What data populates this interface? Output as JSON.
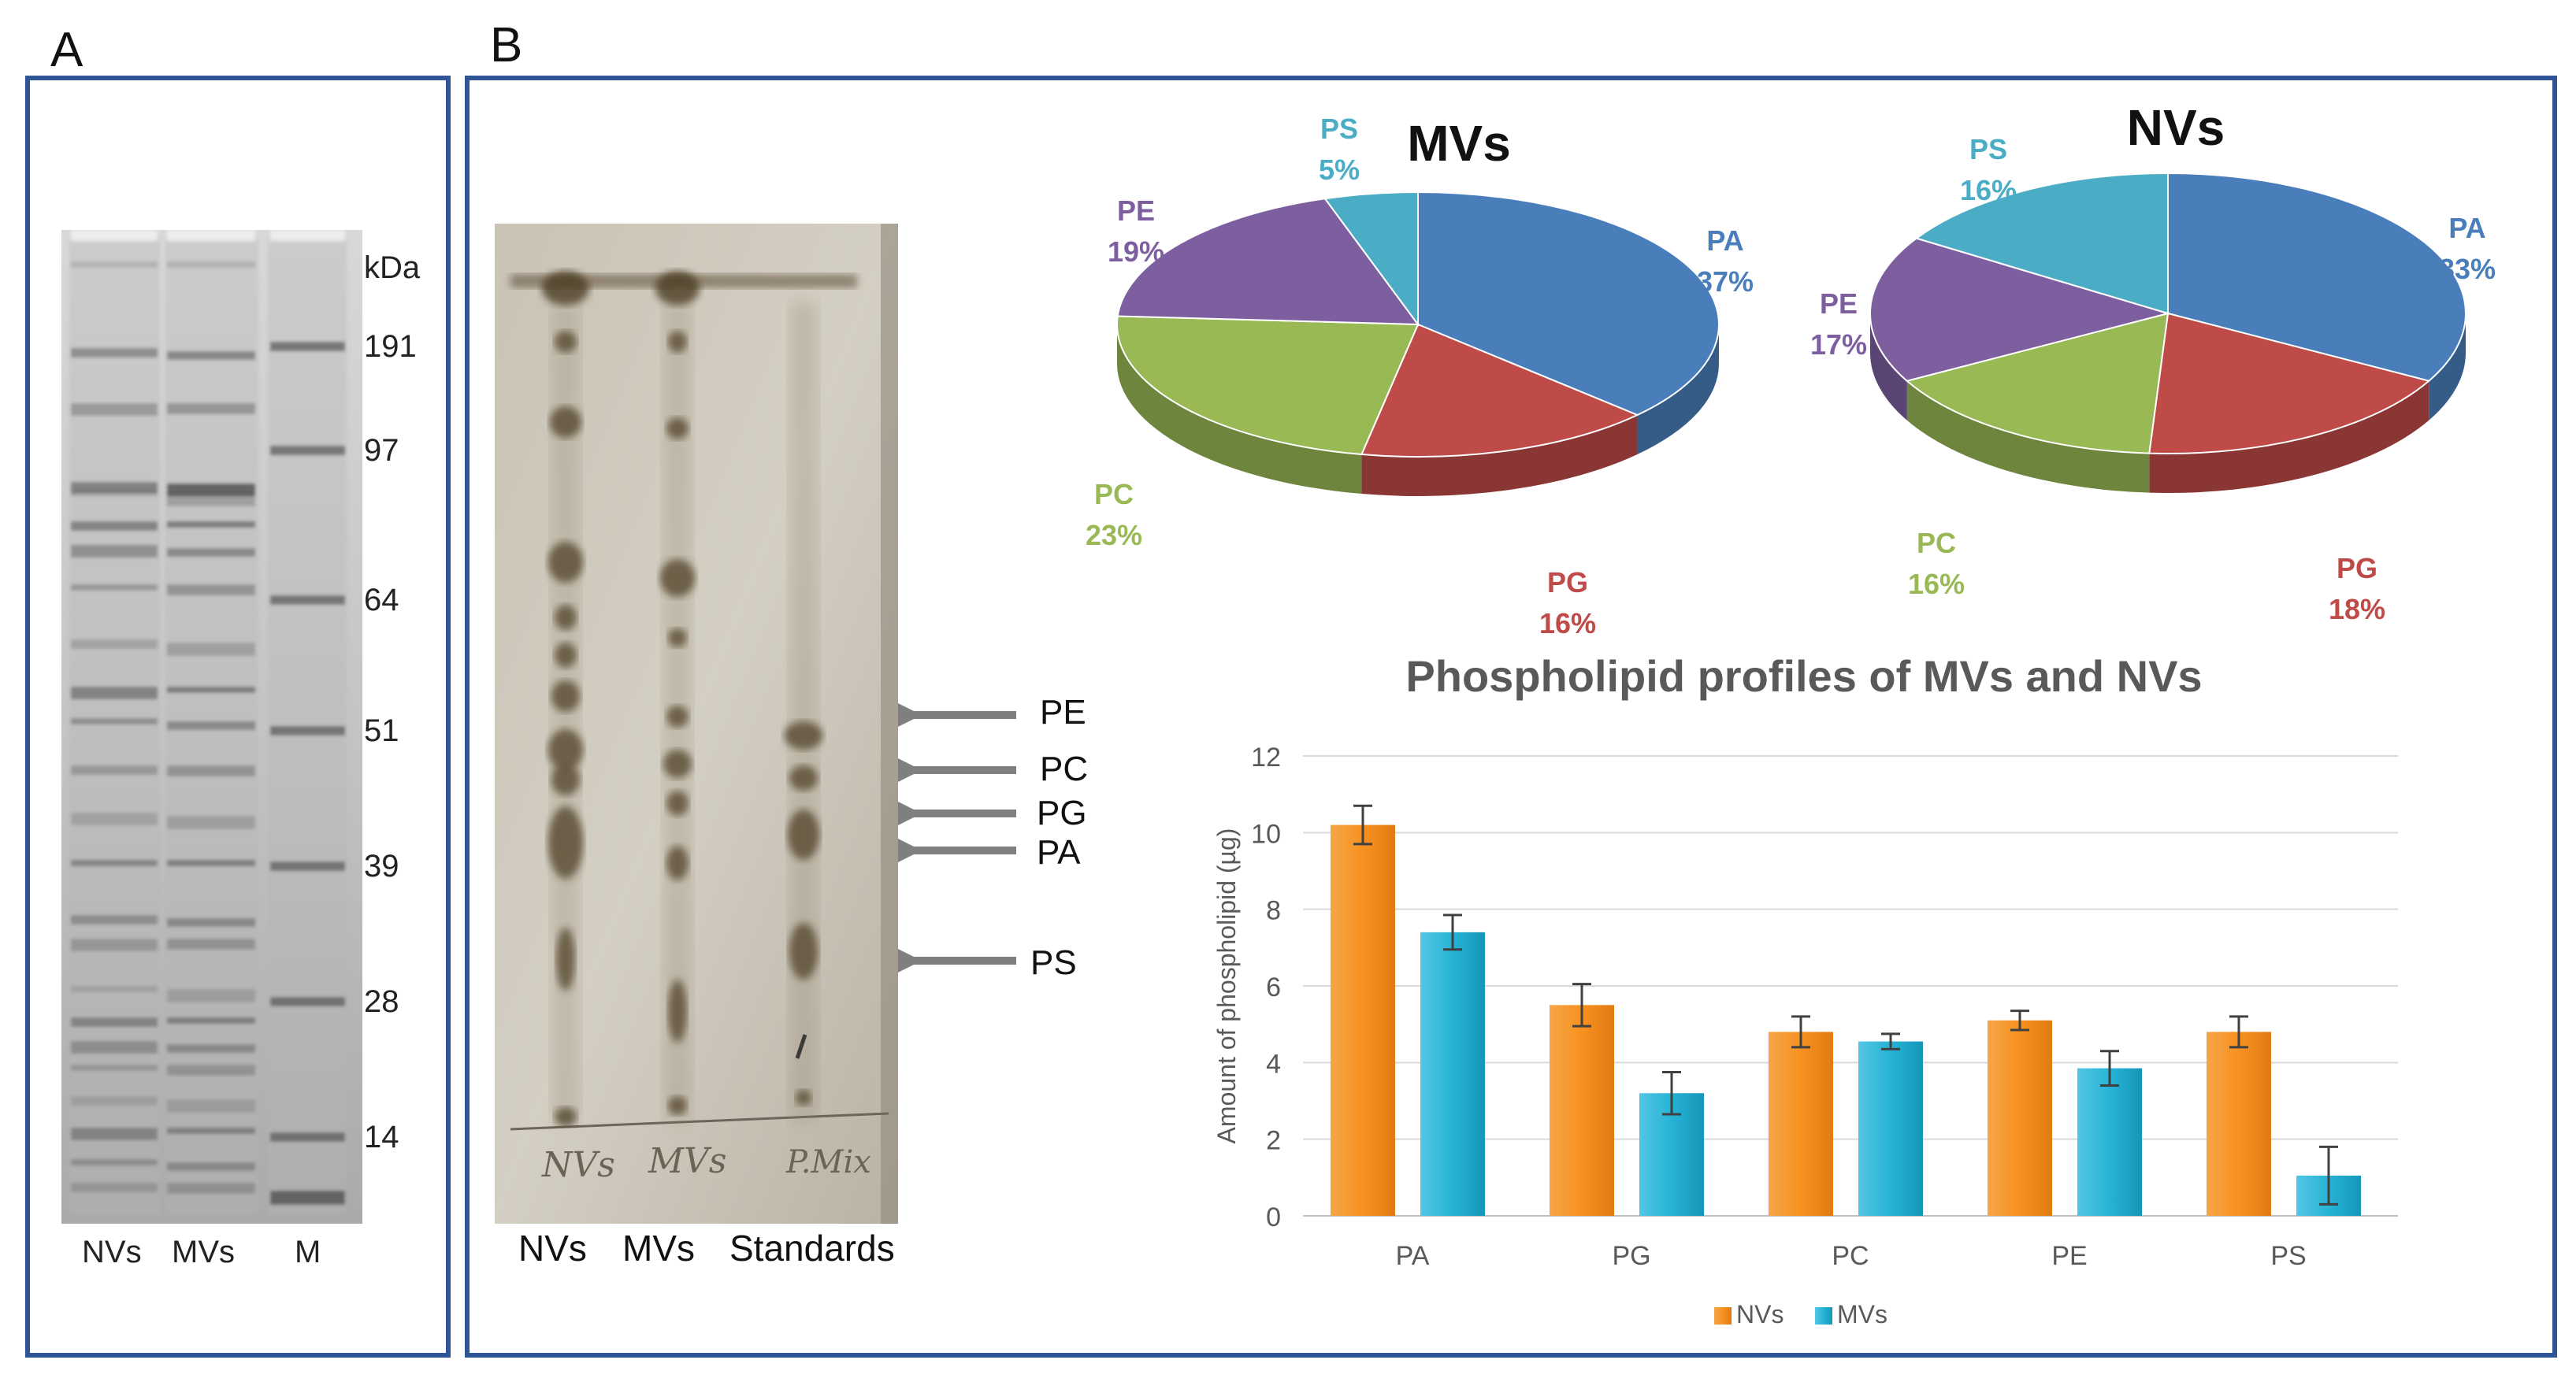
{
  "panels": {
    "a_letter": "A",
    "b_letter": "B"
  },
  "gel": {
    "unit_label": "kDa",
    "markers": [
      "191",
      "97",
      "64",
      "51",
      "39",
      "28",
      "14"
    ],
    "lanes": [
      "NVs",
      "MVs",
      "M"
    ]
  },
  "tlc": {
    "lanes": [
      "NVs",
      "MVs",
      "Standards"
    ],
    "handwriting": [
      "NVs",
      "MVs",
      "P.Mix"
    ],
    "arrows": [
      "PE",
      "PC",
      "PG",
      "PA",
      "PS"
    ]
  },
  "colors": {
    "frame": "#2f5597",
    "PA": "#4a7ebb",
    "PG": "#be4b48",
    "PC": "#98b954",
    "PE": "#7d5fa0",
    "PS": "#4bacc6",
    "nvs_bar": "#f79120",
    "mvs_bar": "#26b3d6"
  },
  "chart_data": [
    {
      "type": "pie",
      "title": "MVs",
      "labels": [
        "PA",
        "PG",
        "PC",
        "PE",
        "PS"
      ],
      "values": [
        37,
        16,
        23,
        19,
        5
      ],
      "value_labels": [
        "37%",
        "16%",
        "23%",
        "19%",
        "5%"
      ]
    },
    {
      "type": "pie",
      "title": "NVs",
      "labels": [
        "PA",
        "PG",
        "PC",
        "PE",
        "PS"
      ],
      "values": [
        33,
        18,
        16,
        17,
        16
      ],
      "value_labels": [
        "33%",
        "18%",
        "16%",
        "17%",
        "16%"
      ]
    },
    {
      "type": "bar",
      "title": "Phospholipid profiles of MVs and NVs",
      "categories": [
        "PA",
        "PG",
        "PC",
        "PE",
        "PS"
      ],
      "series": [
        {
          "name": "NVs",
          "values": [
            10.2,
            5.5,
            4.8,
            5.1,
            4.8
          ],
          "errors": [
            0.5,
            0.55,
            0.4,
            0.25,
            0.4
          ]
        },
        {
          "name": "MVs",
          "values": [
            7.4,
            3.2,
            4.55,
            3.85,
            1.05
          ],
          "errors": [
            0.45,
            0.55,
            0.2,
            0.45,
            0.75
          ]
        }
      ],
      "ylabel": "Amount of phospholipid (µg)",
      "xlabel": "",
      "ylim": [
        0,
        12
      ],
      "yticks": [
        "0",
        "2",
        "4",
        "6",
        "8",
        "10",
        "12"
      ],
      "grid": true,
      "legend": "bottom-center"
    }
  ]
}
